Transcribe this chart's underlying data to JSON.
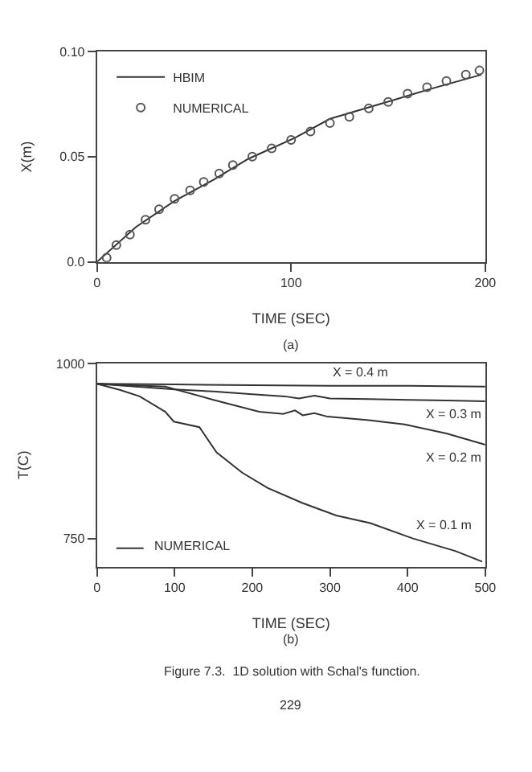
{
  "chart_data": [
    {
      "type": "line",
      "xlabel": "TIME (SEC)",
      "ylabel": "X(m)",
      "xlim": [
        0,
        200
      ],
      "xticks": [
        0,
        100,
        200
      ],
      "ylim": [
        0,
        0.1
      ],
      "yticks": [
        {
          "value": 0,
          "label": "0.0"
        },
        0.05,
        {
          "value": 0.1,
          "label": "0.10"
        }
      ],
      "legend": "top left",
      "annotations": [
        "(a)"
      ],
      "series": [
        {
          "name": "HBIM",
          "type": "line",
          "color": "#333333",
          "line_style": "solid",
          "x": [
            0,
            20,
            40,
            60,
            78,
            102,
            120,
            153,
            171,
            198
          ],
          "values": [
            0,
            0.0165,
            0.029,
            0.039,
            0.049,
            0.059,
            0.068,
            0.077,
            0.082,
            0.089
          ]
        },
        {
          "name": "NUMERICAL",
          "type": "scatter",
          "marker": "circle",
          "color": "#555555",
          "x": [
            5,
            10,
            17,
            25,
            32,
            40,
            48,
            55,
            63,
            70,
            80,
            90,
            100,
            110,
            120,
            130,
            140,
            150,
            160,
            170,
            180,
            190,
            197
          ],
          "values": [
            0.002,
            0.008,
            0.013,
            0.02,
            0.025,
            0.03,
            0.034,
            0.038,
            0.042,
            0.046,
            0.05,
            0.054,
            0.058,
            0.062,
            0.066,
            0.069,
            0.073,
            0.076,
            0.08,
            0.083,
            0.086,
            0.089,
            0.091
          ]
        }
      ]
    },
    {
      "type": "line",
      "xlabel": "TIME (SEC)",
      "ylabel": "T(C)",
      "xlim": [
        0,
        500
      ],
      "xticks": [
        0,
        100,
        200,
        300,
        400,
        500
      ],
      "ylim": [
        710,
        1000
      ],
      "yticks": [
        750,
        1000
      ],
      "annotations": [
        "NUMERICAL",
        "(b)",
        "Figure 7.3.  1D solution with Schal's function.",
        "229"
      ],
      "series": [
        {
          "name": "X = 0.4 m",
          "color": "#333333",
          "x": [
            0,
            100,
            200,
            300,
            400,
            500
          ],
          "values": [
            971,
            970,
            969,
            968,
            968,
            967
          ]
        },
        {
          "name": "X = 0.3 m",
          "color": "#333333",
          "x": [
            0,
            50,
            100,
            150,
            200,
            242,
            260,
            280,
            300,
            350,
            400,
            450,
            500
          ],
          "values": [
            971,
            967,
            963,
            960,
            956,
            953,
            950,
            954,
            950,
            949,
            948,
            947,
            946
          ]
        },
        {
          "name": "X = 0.2 m",
          "color": "#333333",
          "x": [
            0,
            88,
            150,
            209,
            240,
            255,
            265,
            280,
            297,
            350,
            396,
            450,
            500
          ],
          "values": [
            971,
            967,
            948,
            931,
            928,
            933,
            926,
            929,
            924,
            919,
            913,
            900,
            884
          ]
        },
        {
          "name": "X = 0.1 m",
          "color": "#333333",
          "x": [
            0,
            30,
            55,
            88,
            99,
            132,
            154,
            187,
            220,
            264,
            308,
            352,
            407,
            462,
            496
          ],
          "values": [
            971,
            962,
            953,
            931,
            917,
            909,
            873,
            844,
            822,
            801,
            783,
            772,
            750,
            732,
            717
          ]
        }
      ]
    }
  ]
}
